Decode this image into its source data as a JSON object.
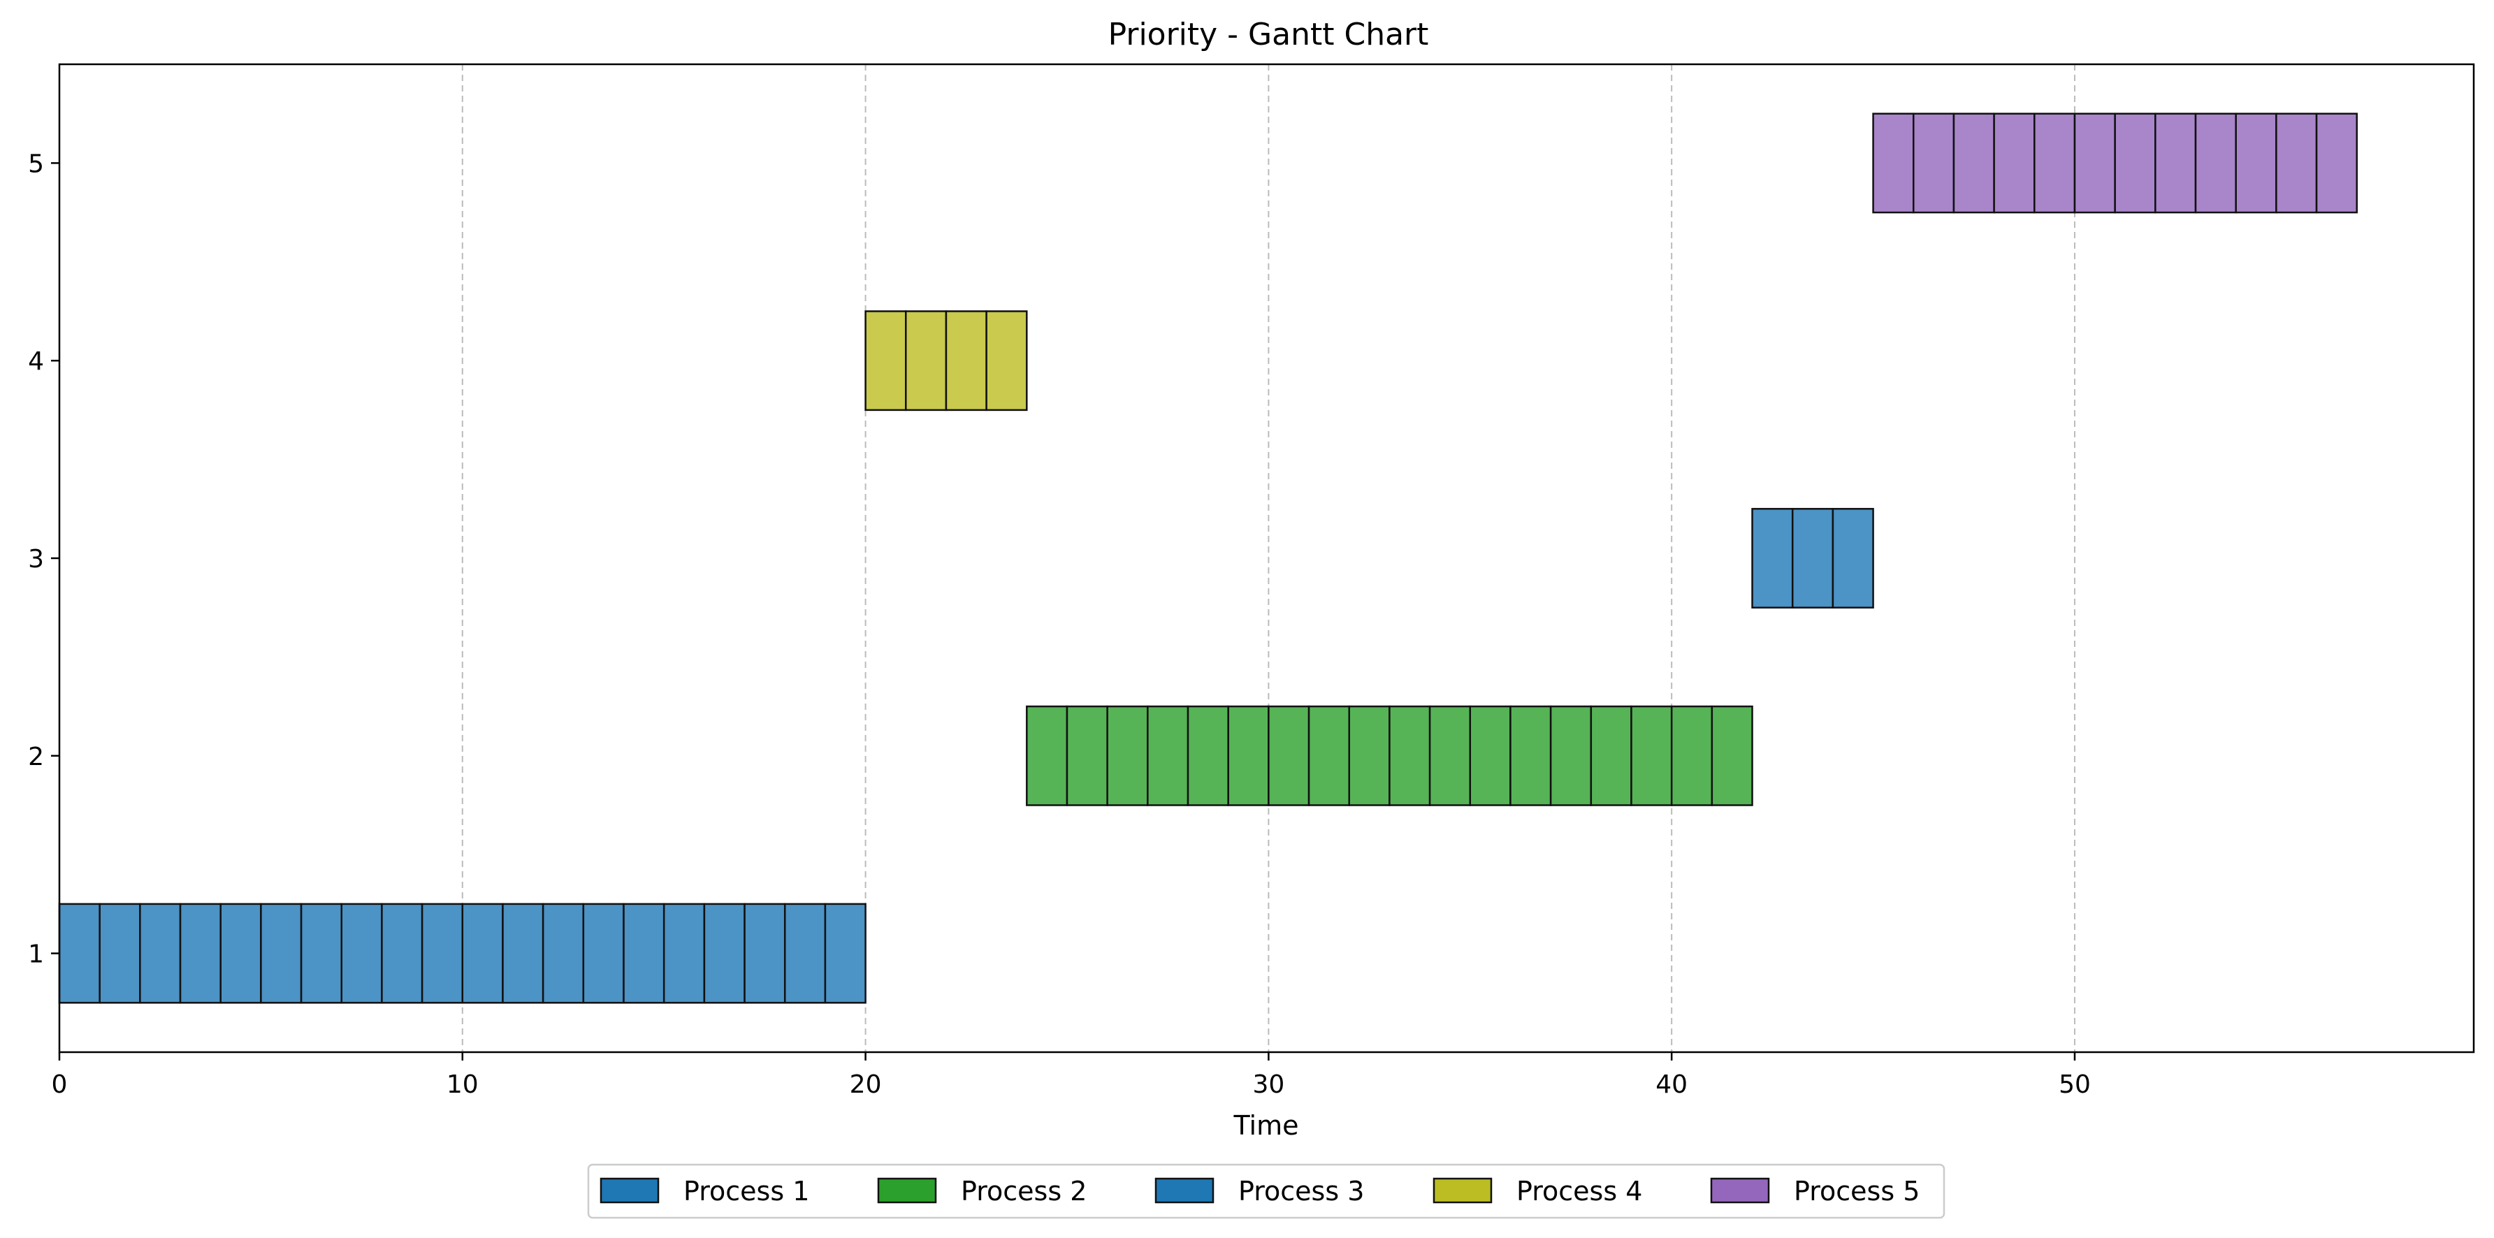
{
  "chart_data": {
    "type": "gantt",
    "title": "Priority - Gantt Chart",
    "xlabel": "Time",
    "ylabel": "",
    "xlim": [
      0,
      59.9
    ],
    "ylim": [
      0.5,
      5.5
    ],
    "x_ticks": [
      0,
      10,
      20,
      30,
      40,
      50
    ],
    "y_ticks": [
      1,
      2,
      3,
      4,
      5
    ],
    "grid": "x-dashed",
    "legend_position": "bottom-center",
    "unit_width": 1,
    "series": [
      {
        "name": "Process 1",
        "row": 1,
        "start": 0,
        "end": 20,
        "color": "#1f77b4",
        "fill": "#4c93c6"
      },
      {
        "name": "Process 2",
        "row": 2,
        "start": 24,
        "end": 42,
        "color": "#2ca02c",
        "fill": "#56b456"
      },
      {
        "name": "Process 3",
        "row": 3,
        "start": 42,
        "end": 45,
        "color": "#1f77b4",
        "fill": "#4c93c6"
      },
      {
        "name": "Process 4",
        "row": 4,
        "start": 20,
        "end": 24,
        "color": "#bcbd22",
        "fill": "#c9ca4e"
      },
      {
        "name": "Process 5",
        "row": 5,
        "start": 45,
        "end": 57,
        "color": "#9467bd",
        "fill": "#a985ca"
      }
    ]
  }
}
